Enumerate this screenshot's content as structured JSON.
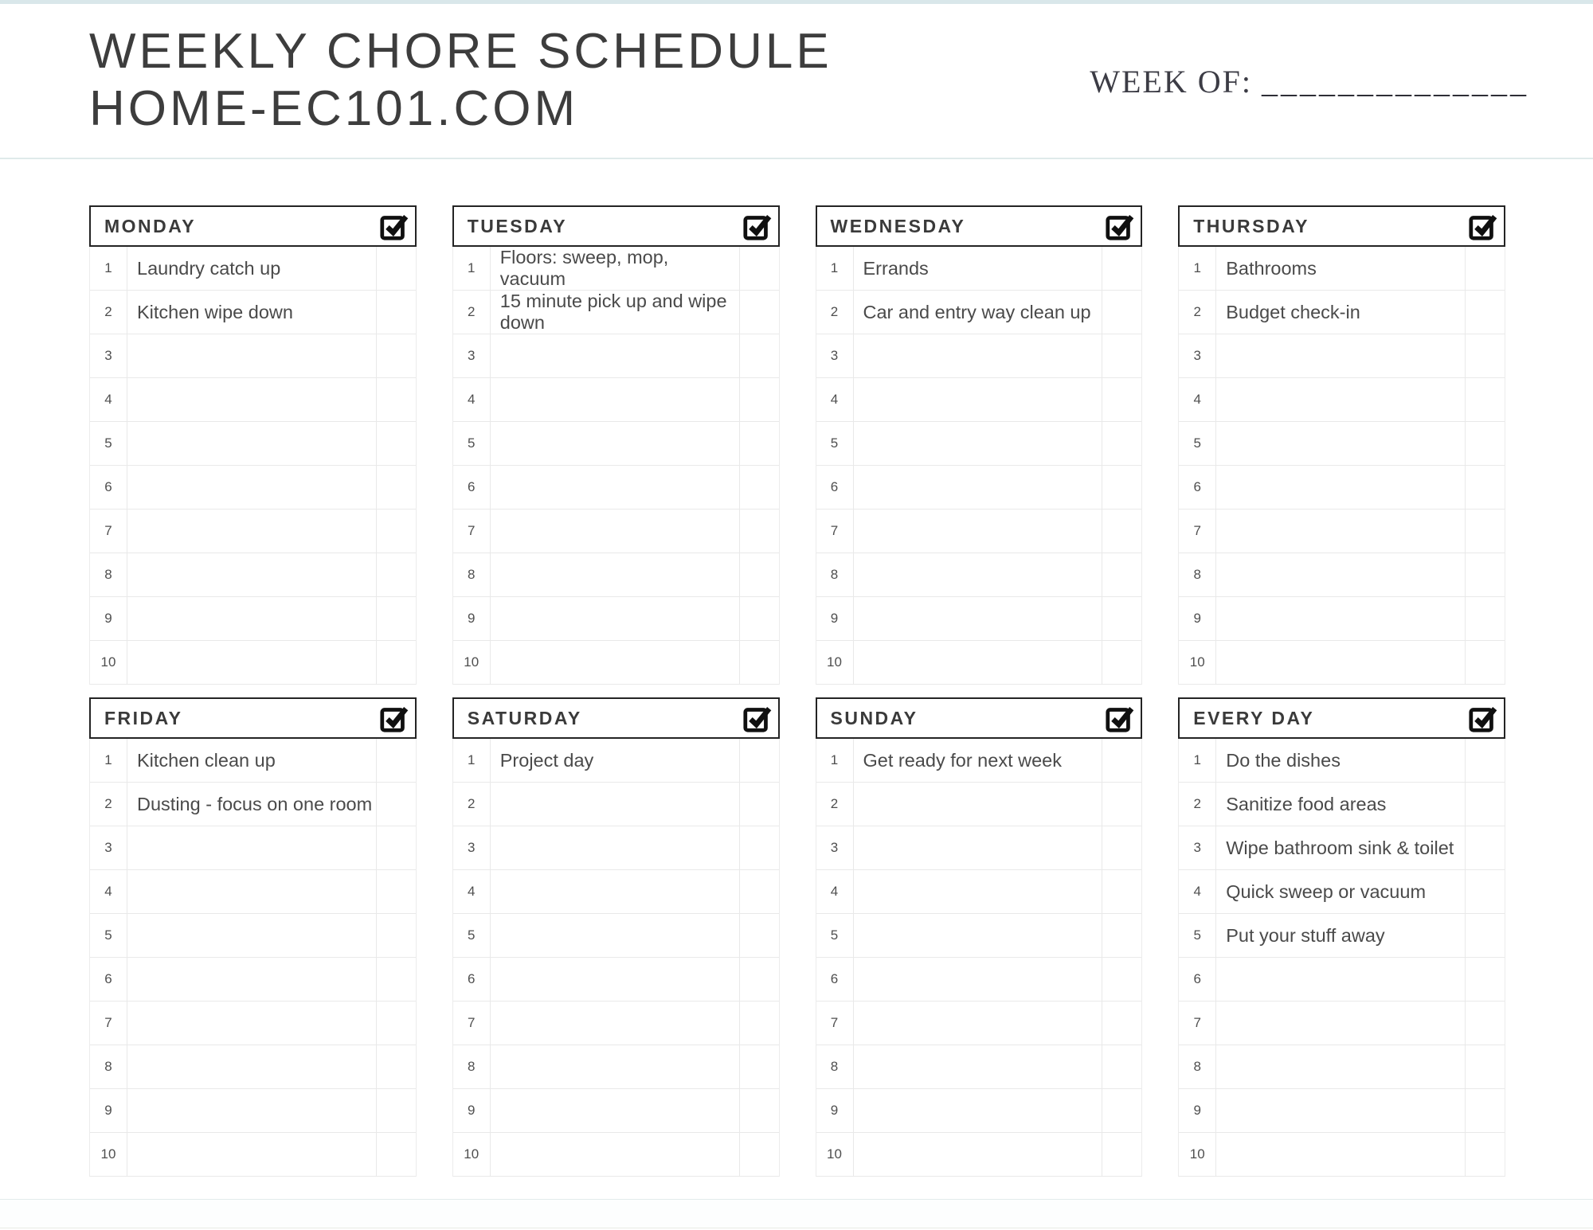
{
  "colors": {
    "accent_strip": "#d9e7ea",
    "header_rule": "#dfeaea",
    "card_border_dark": "#242424",
    "grid_border": "#e9e9e9",
    "title_text": "#3d3d3d",
    "task_text": "#4a4a4a"
  },
  "header": {
    "title_line1": "WEEKLY CHORE SCHEDULE",
    "title_line2": "HOME-EC101.COM",
    "week_of_label": "WEEK OF:",
    "week_of_blank": "______________"
  },
  "rows_per_card": 10,
  "icons": {
    "card_checkbox": "checked-checkbox-icon"
  },
  "cards": [
    {
      "day": "MONDAY",
      "tasks": [
        "Laundry catch up",
        "Kitchen wipe down"
      ]
    },
    {
      "day": "TUESDAY",
      "tasks": [
        "Floors: sweep, mop, vacuum",
        "15 minute pick up and wipe down"
      ]
    },
    {
      "day": "WEDNESDAY",
      "tasks": [
        "Errands",
        "Car and entry way clean up"
      ]
    },
    {
      "day": "THURSDAY",
      "tasks": [
        "Bathrooms",
        "Budget check-in"
      ]
    },
    {
      "day": "FRIDAY",
      "tasks": [
        "Kitchen clean up",
        "Dusting - focus on one room"
      ]
    },
    {
      "day": "SATURDAY",
      "tasks": [
        "Project day"
      ]
    },
    {
      "day": "SUNDAY",
      "tasks": [
        "Get ready for next week"
      ]
    },
    {
      "day": "EVERY DAY",
      "tasks": [
        "Do the dishes",
        "Sanitize food areas",
        "Wipe bathroom sink & toilet",
        "Quick sweep or vacuum",
        "Put your stuff away"
      ]
    }
  ]
}
